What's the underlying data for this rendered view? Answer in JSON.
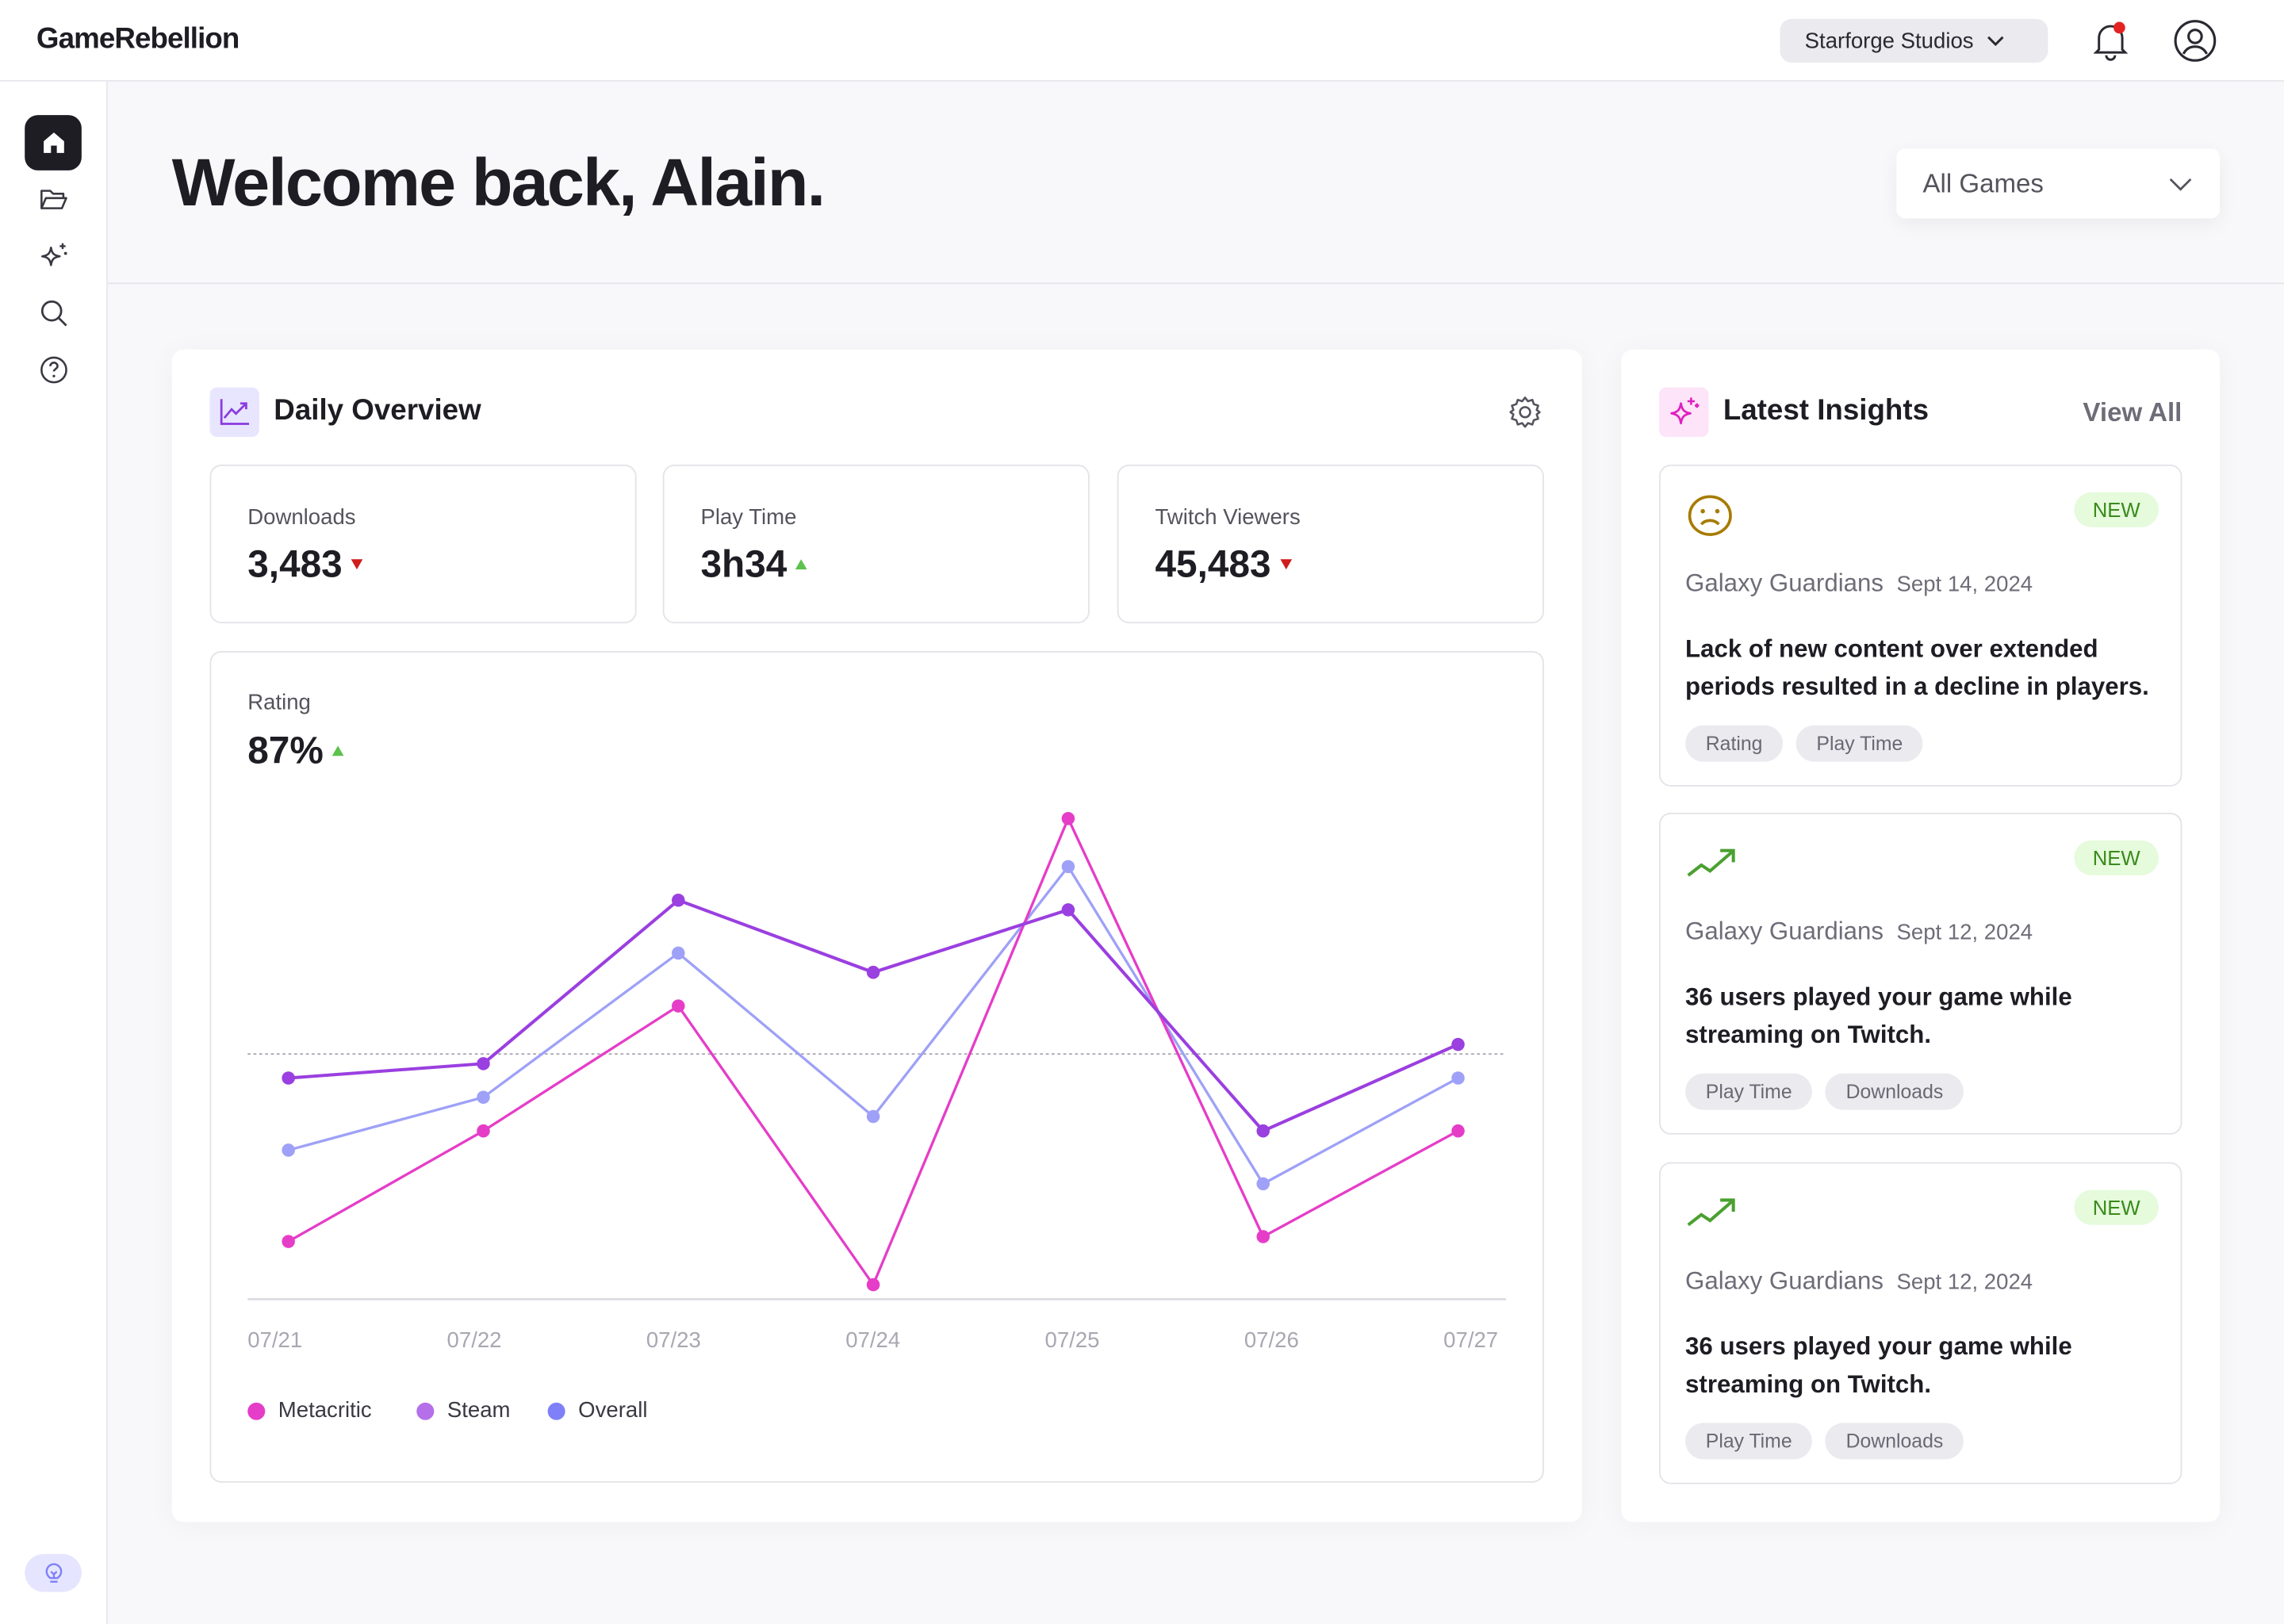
{
  "app": {
    "logo": "GameRebellion",
    "studio": "Starforge Studios"
  },
  "sidebar": {
    "items": [
      "home",
      "folder",
      "sparkle",
      "search",
      "help"
    ],
    "bottom": "lightbulb"
  },
  "page": {
    "welcome": "Welcome back, Alain.",
    "game_filter": "All Games"
  },
  "overview": {
    "title": "Daily Overview",
    "stats": [
      {
        "label": "Downloads",
        "value": "3,483",
        "trend": "down"
      },
      {
        "label": "Play Time",
        "value": "3h34",
        "trend": "up"
      },
      {
        "label": "Twitch Viewers",
        "value": "45,483",
        "trend": "down"
      }
    ],
    "rating": {
      "label": "Rating",
      "value": "87%",
      "trend": "up"
    }
  },
  "colors": {
    "metacritic": "#e53dc8",
    "steam": "#9a3fe0",
    "overall": "#9ea1f7",
    "steam_legend": "#b56fe9",
    "overall_legend": "#7f80f7",
    "up": "#5cc24c",
    "down": "#d01c1c"
  },
  "chart_data": {
    "type": "line",
    "x": [
      "07/21",
      "07/22",
      "07/23",
      "07/24",
      "07/25",
      "07/26",
      "07/27"
    ],
    "series": [
      {
        "name": "Metacritic",
        "values": [
          12,
          35,
          61,
          3,
          100,
          13,
          35
        ]
      },
      {
        "name": "Steam",
        "values": [
          46,
          49,
          83,
          68,
          81,
          35,
          53
        ]
      },
      {
        "name": "Overall",
        "values": [
          31,
          42,
          72,
          38,
          90,
          24,
          46
        ]
      }
    ],
    "reference_line": 51,
    "ylim": [
      0,
      100
    ],
    "grid": false,
    "legend": "bottom-left"
  },
  "insights": {
    "title": "Latest Insights",
    "view_all": "View All",
    "items": [
      {
        "icon": "sad-face",
        "badge": "NEW",
        "game": "Galaxy Guardians",
        "date": "Sept 14, 2024",
        "text": "Lack of new content over extended periods resulted in a decline in players.",
        "tags": [
          "Rating",
          "Play Time"
        ]
      },
      {
        "icon": "trending-up",
        "badge": "NEW",
        "game": "Galaxy Guardians",
        "date": "Sept 12, 2024",
        "text": "36 users played your game while streaming on Twitch.",
        "tags": [
          "Play Time",
          "Downloads"
        ]
      },
      {
        "icon": "trending-up",
        "badge": "NEW",
        "game": "Galaxy Guardians",
        "date": "Sept 12, 2024",
        "text": "36 users played your game while streaming on Twitch.",
        "tags": [
          "Play Time",
          "Downloads"
        ]
      }
    ]
  }
}
